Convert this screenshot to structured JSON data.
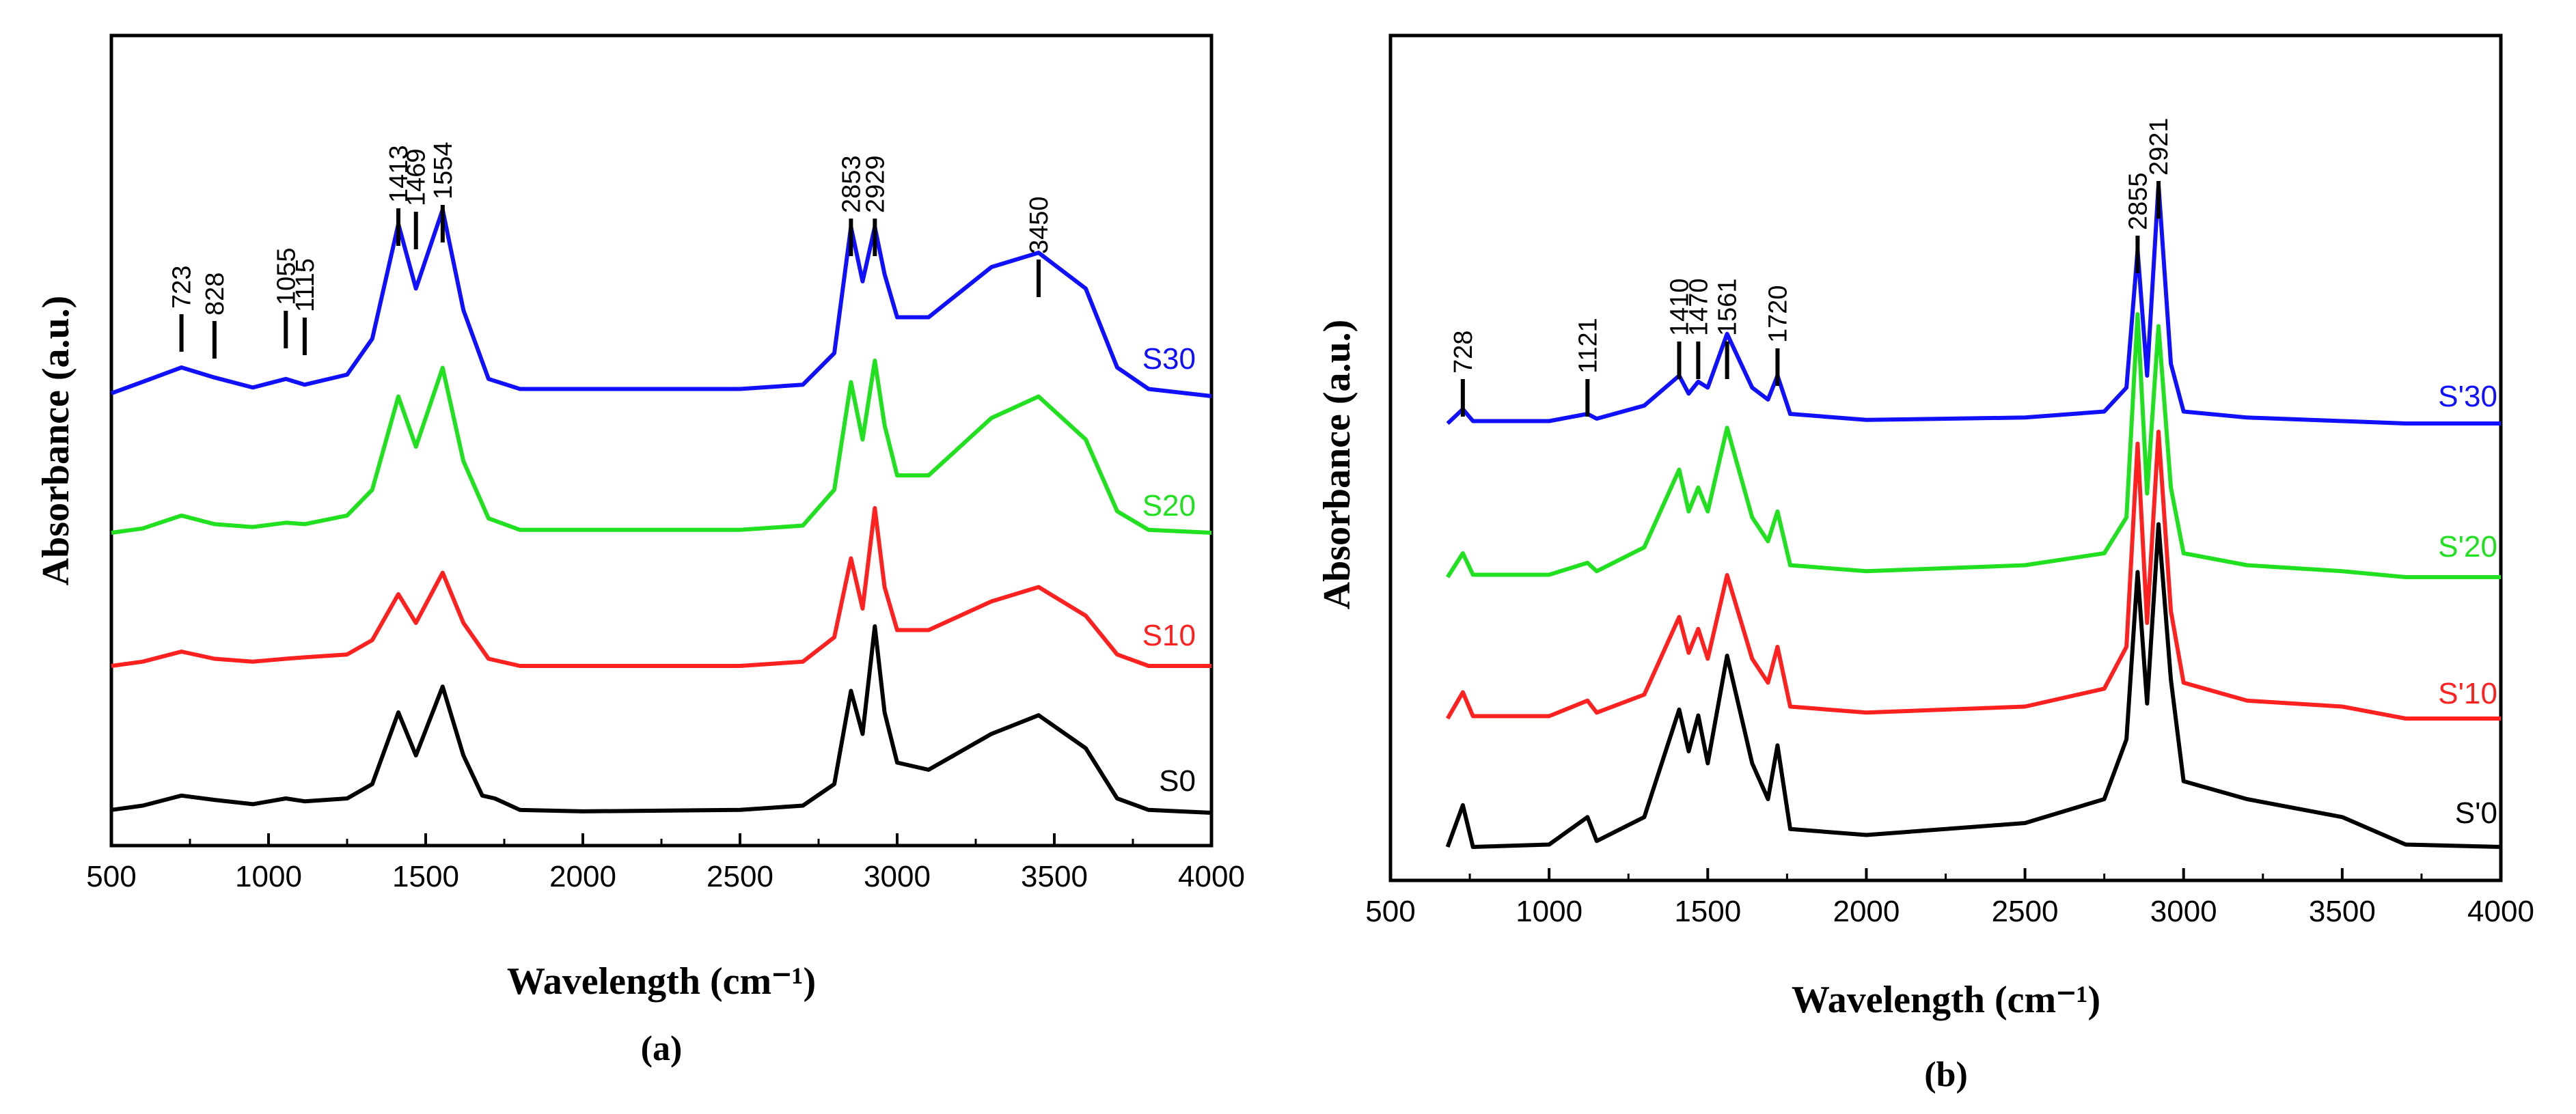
{
  "chart_data": [
    {
      "panel": "(a)",
      "type": "line",
      "xlabel": "Wavelength (cm⁻¹)",
      "ylabel": "Absorbance (a.u.)",
      "xlim": [
        500,
        4000
      ],
      "xticks": [
        500,
        1000,
        1500,
        2000,
        2500,
        3000,
        3500,
        4000
      ],
      "yticks_shown": false,
      "series_note": "y values are relative absorbance estimates read from the figure; each trace is vertically offset (stacked)",
      "series": [
        {
          "name": "S0",
          "color": "#000000",
          "offset": 0,
          "points": [
            [
              500,
              0.02
            ],
            [
              600,
              0.05
            ],
            [
              723,
              0.12
            ],
            [
              828,
              0.09
            ],
            [
              950,
              0.06
            ],
            [
              1055,
              0.1
            ],
            [
              1115,
              0.08
            ],
            [
              1250,
              0.1
            ],
            [
              1330,
              0.2
            ],
            [
              1413,
              0.7
            ],
            [
              1469,
              0.4
            ],
            [
              1554,
              0.88
            ],
            [
              1620,
              0.4
            ],
            [
              1680,
              0.12
            ],
            [
              1720,
              0.1
            ],
            [
              1800,
              0.02
            ],
            [
              2000,
              0.01
            ],
            [
              2500,
              0.02
            ],
            [
              2700,
              0.05
            ],
            [
              2800,
              0.2
            ],
            [
              2853,
              0.85
            ],
            [
              2890,
              0.55
            ],
            [
              2929,
              1.3
            ],
            [
              2960,
              0.7
            ],
            [
              3000,
              0.35
            ],
            [
              3100,
              0.3
            ],
            [
              3300,
              0.55
            ],
            [
              3450,
              0.68
            ],
            [
              3600,
              0.45
            ],
            [
              3700,
              0.1
            ],
            [
              3800,
              0.02
            ],
            [
              4000,
              0.0
            ]
          ]
        },
        {
          "name": "S10",
          "color": "#ff2020",
          "offset": 0.85,
          "points": [
            [
              500,
              0.0
            ],
            [
              600,
              0.03
            ],
            [
              723,
              0.1
            ],
            [
              828,
              0.05
            ],
            [
              950,
              0.03
            ],
            [
              1055,
              0.05
            ],
            [
              1115,
              0.06
            ],
            [
              1250,
              0.08
            ],
            [
              1330,
              0.18
            ],
            [
              1413,
              0.5
            ],
            [
              1469,
              0.3
            ],
            [
              1554,
              0.65
            ],
            [
              1620,
              0.3
            ],
            [
              1700,
              0.05
            ],
            [
              1800,
              0.0
            ],
            [
              2500,
              0.0
            ],
            [
              2700,
              0.03
            ],
            [
              2800,
              0.2
            ],
            [
              2853,
              0.75
            ],
            [
              2890,
              0.4
            ],
            [
              2929,
              1.1
            ],
            [
              2960,
              0.55
            ],
            [
              3000,
              0.25
            ],
            [
              3100,
              0.25
            ],
            [
              3300,
              0.45
            ],
            [
              3450,
              0.55
            ],
            [
              3600,
              0.35
            ],
            [
              3700,
              0.08
            ],
            [
              3800,
              0.0
            ],
            [
              4000,
              0.0
            ]
          ]
        },
        {
          "name": "S20",
          "color": "#20e020",
          "offset": 1.65,
          "points": [
            [
              500,
              0.0
            ],
            [
              600,
              0.03
            ],
            [
              723,
              0.12
            ],
            [
              828,
              0.06
            ],
            [
              950,
              0.04
            ],
            [
              1055,
              0.07
            ],
            [
              1115,
              0.06
            ],
            [
              1250,
              0.12
            ],
            [
              1330,
              0.3
            ],
            [
              1413,
              0.95
            ],
            [
              1469,
              0.6
            ],
            [
              1554,
              1.15
            ],
            [
              1620,
              0.5
            ],
            [
              1700,
              0.1
            ],
            [
              1800,
              0.02
            ],
            [
              2500,
              0.02
            ],
            [
              2700,
              0.05
            ],
            [
              2800,
              0.3
            ],
            [
              2853,
              1.05
            ],
            [
              2890,
              0.65
            ],
            [
              2929,
              1.2
            ],
            [
              2960,
              0.75
            ],
            [
              3000,
              0.4
            ],
            [
              3100,
              0.4
            ],
            [
              3300,
              0.8
            ],
            [
              3450,
              0.95
            ],
            [
              3600,
              0.65
            ],
            [
              3700,
              0.15
            ],
            [
              3800,
              0.02
            ],
            [
              4000,
              0.0
            ]
          ]
        },
        {
          "name": "S30",
          "color": "#1010ff",
          "offset": 2.6,
          "points": [
            [
              500,
              0.02
            ],
            [
              600,
              0.1
            ],
            [
              723,
              0.2
            ],
            [
              828,
              0.13
            ],
            [
              950,
              0.06
            ],
            [
              1055,
              0.12
            ],
            [
              1115,
              0.08
            ],
            [
              1250,
              0.15
            ],
            [
              1330,
              0.4
            ],
            [
              1413,
              1.2
            ],
            [
              1469,
              0.75
            ],
            [
              1554,
              1.3
            ],
            [
              1620,
              0.6
            ],
            [
              1700,
              0.12
            ],
            [
              1800,
              0.05
            ],
            [
              2500,
              0.05
            ],
            [
              2700,
              0.08
            ],
            [
              2800,
              0.3
            ],
            [
              2853,
              1.18
            ],
            [
              2890,
              0.8
            ],
            [
              2929,
              1.18
            ],
            [
              2960,
              0.85
            ],
            [
              3000,
              0.55
            ],
            [
              3100,
              0.55
            ],
            [
              3300,
              0.9
            ],
            [
              3450,
              1.0
            ],
            [
              3600,
              0.75
            ],
            [
              3700,
              0.2
            ],
            [
              3800,
              0.05
            ],
            [
              4000,
              0.0
            ]
          ]
        }
      ],
      "annotations": [
        "723",
        "828",
        "1055",
        "1115",
        "1413",
        "1469",
        "1554",
        "2853",
        "2929",
        "3450"
      ]
    },
    {
      "panel": "(b)",
      "type": "line",
      "xlabel": "Wavelength (cm⁻¹)",
      "ylabel": "Absorbance (a.u.)",
      "xlim": [
        500,
        4000
      ],
      "xticks": [
        500,
        1000,
        1500,
        2000,
        2500,
        3000,
        3500,
        4000
      ],
      "yticks_shown": false,
      "series_note": "y values are relative absorbance estimates read from the figure; each trace is vertically offset (stacked)",
      "series": [
        {
          "name": "S'0",
          "color": "#000000",
          "offset": 0,
          "points": [
            [
              680,
              0.0
            ],
            [
              728,
              0.35
            ],
            [
              760,
              0.0
            ],
            [
              1000,
              0.02
            ],
            [
              1121,
              0.25
            ],
            [
              1150,
              0.05
            ],
            [
              1300,
              0.25
            ],
            [
              1410,
              1.15
            ],
            [
              1440,
              0.8
            ],
            [
              1470,
              1.1
            ],
            [
              1500,
              0.7
            ],
            [
              1561,
              1.6
            ],
            [
              1640,
              0.7
            ],
            [
              1690,
              0.4
            ],
            [
              1720,
              0.85
            ],
            [
              1760,
              0.15
            ],
            [
              2000,
              0.1
            ],
            [
              2500,
              0.2
            ],
            [
              2750,
              0.4
            ],
            [
              2820,
              0.9
            ],
            [
              2855,
              2.3
            ],
            [
              2885,
              1.2
            ],
            [
              2921,
              2.7
            ],
            [
              2960,
              1.4
            ],
            [
              3000,
              0.55
            ],
            [
              3200,
              0.4
            ],
            [
              3500,
              0.25
            ],
            [
              3700,
              0.02
            ],
            [
              4000,
              0.0
            ]
          ]
        },
        {
          "name": "S'10",
          "color": "#ff2020",
          "offset": 0.95,
          "points": [
            [
              680,
              0.0
            ],
            [
              728,
              0.22
            ],
            [
              760,
              0.02
            ],
            [
              1000,
              0.02
            ],
            [
              1121,
              0.15
            ],
            [
              1150,
              0.05
            ],
            [
              1300,
              0.2
            ],
            [
              1410,
              0.85
            ],
            [
              1440,
              0.55
            ],
            [
              1470,
              0.75
            ],
            [
              1500,
              0.5
            ],
            [
              1561,
              1.2
            ],
            [
              1640,
              0.5
            ],
            [
              1690,
              0.3
            ],
            [
              1720,
              0.6
            ],
            [
              1760,
              0.1
            ],
            [
              2000,
              0.05
            ],
            [
              2500,
              0.1
            ],
            [
              2750,
              0.25
            ],
            [
              2820,
              0.6
            ],
            [
              2855,
              2.3
            ],
            [
              2885,
              0.8
            ],
            [
              2921,
              2.4
            ],
            [
              2960,
              0.9
            ],
            [
              3000,
              0.3
            ],
            [
              3200,
              0.15
            ],
            [
              3500,
              0.1
            ],
            [
              3700,
              0.0
            ],
            [
              4000,
              0.0
            ]
          ]
        },
        {
          "name": "S'20",
          "color": "#20e020",
          "offset": 1.8,
          "points": [
            [
              680,
              0.0
            ],
            [
              728,
              0.2
            ],
            [
              760,
              0.02
            ],
            [
              1000,
              0.02
            ],
            [
              1121,
              0.12
            ],
            [
              1150,
              0.05
            ],
            [
              1300,
              0.25
            ],
            [
              1410,
              0.9
            ],
            [
              1440,
              0.55
            ],
            [
              1470,
              0.75
            ],
            [
              1500,
              0.55
            ],
            [
              1561,
              1.25
            ],
            [
              1640,
              0.5
            ],
            [
              1690,
              0.3
            ],
            [
              1720,
              0.55
            ],
            [
              1760,
              0.1
            ],
            [
              2000,
              0.05
            ],
            [
              2500,
              0.1
            ],
            [
              2750,
              0.2
            ],
            [
              2820,
              0.5
            ],
            [
              2855,
              2.2
            ],
            [
              2885,
              0.7
            ],
            [
              2921,
              2.1
            ],
            [
              2960,
              0.75
            ],
            [
              3000,
              0.2
            ],
            [
              3200,
              0.1
            ],
            [
              3500,
              0.05
            ],
            [
              3700,
              0.0
            ],
            [
              4000,
              0.0
            ]
          ]
        },
        {
          "name": "S'30",
          "color": "#1010ff",
          "offset": 2.75,
          "points": [
            [
              680,
              0.0
            ],
            [
              728,
              0.12
            ],
            [
              760,
              0.02
            ],
            [
              1000,
              0.02
            ],
            [
              1121,
              0.08
            ],
            [
              1150,
              0.04
            ],
            [
              1300,
              0.15
            ],
            [
              1410,
              0.4
            ],
            [
              1440,
              0.25
            ],
            [
              1470,
              0.35
            ],
            [
              1500,
              0.3
            ],
            [
              1561,
              0.75
            ],
            [
              1640,
              0.3
            ],
            [
              1690,
              0.2
            ],
            [
              1720,
              0.4
            ],
            [
              1760,
              0.08
            ],
            [
              2000,
              0.03
            ],
            [
              2500,
              0.05
            ],
            [
              2750,
              0.1
            ],
            [
              2820,
              0.3
            ],
            [
              2855,
              1.45
            ],
            [
              2885,
              0.4
            ],
            [
              2921,
              2.0
            ],
            [
              2960,
              0.5
            ],
            [
              3000,
              0.1
            ],
            [
              3200,
              0.05
            ],
            [
              3500,
              0.02
            ],
            [
              3700,
              0.0
            ],
            [
              4000,
              0.0
            ]
          ]
        }
      ],
      "annotations": [
        "728",
        "1121",
        "1410",
        "1470",
        "1561",
        "1720",
        "2855",
        "2921"
      ]
    }
  ]
}
